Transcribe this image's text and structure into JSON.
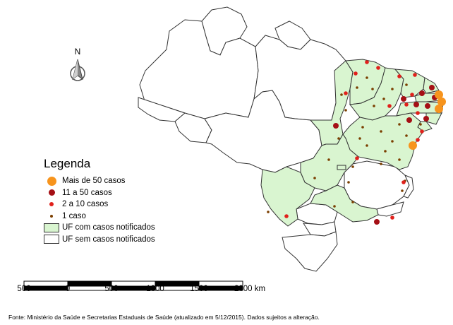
{
  "legend": {
    "title": "Legenda",
    "items": [
      {
        "label": "Mais de 50 casos",
        "color": "#f7941d",
        "kind": "large-dot"
      },
      {
        "label": "11 a 50 casos",
        "color": "#a50f15",
        "kind": "medium-dot"
      },
      {
        "label": "2 a 10 casos",
        "color": "#e0201b",
        "kind": "small-dot"
      },
      {
        "label": "1 caso",
        "color": "#7b3f00",
        "kind": "tiny-dot"
      },
      {
        "label": "UF com casos notificados",
        "color": "#d9f5d0",
        "kind": "box"
      },
      {
        "label": "UF sem casos notificados",
        "color": "#ffffff",
        "kind": "box"
      }
    ]
  },
  "scale_bar": {
    "labels": [
      "500",
      "0",
      "500",
      "1000",
      "1500",
      "2000 km"
    ]
  },
  "north_arrow": {
    "label": "N",
    "icon": "north-arrow-icon"
  },
  "footer": {
    "text": "Fonte: Ministério da Saúde e Secretarias Estaduais de Saúde (atualizado em 5/12/2015).  Dados sujeitos a alteração."
  },
  "colors": {
    "notified_fill": "#d9f5d0",
    "unnotified_fill": "#ffffff",
    "border": "#333333"
  }
}
